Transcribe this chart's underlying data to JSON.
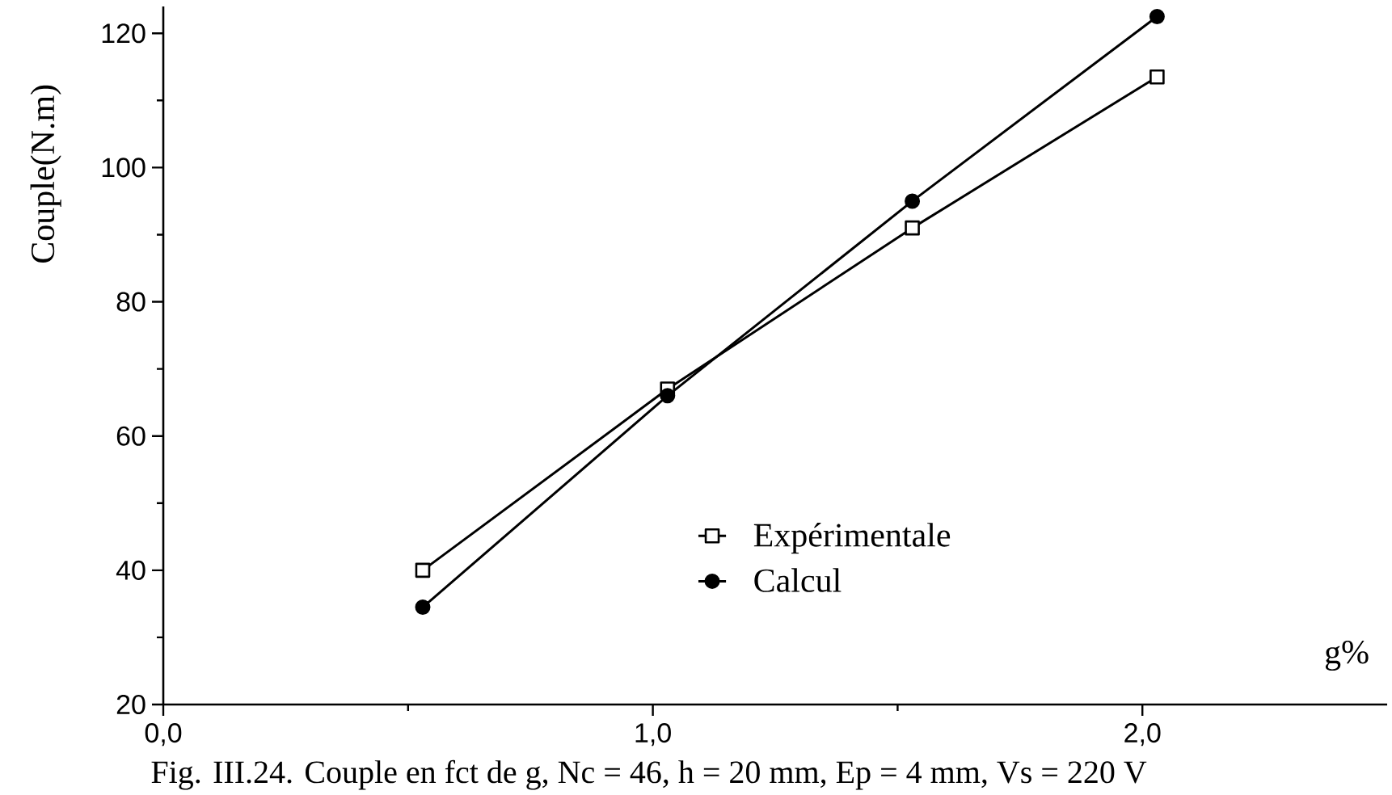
{
  "chart_data": {
    "type": "line",
    "xlabel": "g%",
    "ylabel": "Couple(N.m)",
    "x": [
      0.53,
      1.03,
      1.53,
      2.03
    ],
    "series": [
      {
        "name": "Expérimentale",
        "color": "#000000",
        "marker": "square",
        "values": [
          40,
          67,
          91,
          113.5
        ]
      },
      {
        "name": "Calcul",
        "color": "#000000",
        "marker": "circle",
        "values": [
          34.5,
          66,
          95,
          122.5
        ]
      }
    ],
    "xlim": [
      0,
      2.5
    ],
    "ylim": [
      20,
      124
    ],
    "xticks": [
      {
        "value": 0,
        "label": "0,0"
      },
      {
        "value": 0.5,
        "label": null
      },
      {
        "value": 1,
        "label": "1,0"
      },
      {
        "value": 1.5,
        "label": null
      },
      {
        "value": 2,
        "label": "2,0"
      }
    ],
    "yticks": [
      20,
      {
        "value": 30,
        "label": null
      },
      40,
      {
        "value": 50,
        "label": null
      },
      60,
      {
        "value": 70,
        "label": null
      },
      80,
      {
        "value": 90,
        "label": null
      },
      100,
      {
        "value": 110,
        "label": null
      },
      120
    ],
    "legend": "bottom",
    "annotations": [
      "Fig. III.24. Couple en fct de g, Nc = 46, h = 20 mm, Ep = 4 mm, Vs = 220 V"
    ]
  }
}
